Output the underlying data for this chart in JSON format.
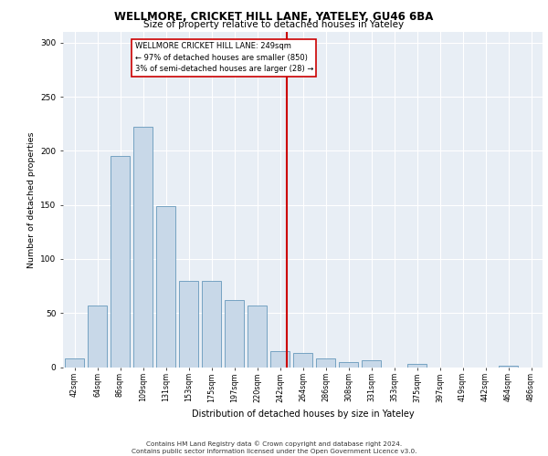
{
  "title1": "WELLMORE, CRICKET HILL LANE, YATELEY, GU46 6BA",
  "title2": "Size of property relative to detached houses in Yateley",
  "xlabel": "Distribution of detached houses by size in Yateley",
  "ylabel": "Number of detached properties",
  "categories": [
    "42sqm",
    "64sqm",
    "86sqm",
    "109sqm",
    "131sqm",
    "153sqm",
    "175sqm",
    "197sqm",
    "220sqm",
    "242sqm",
    "264sqm",
    "286sqm",
    "308sqm",
    "331sqm",
    "353sqm",
    "375sqm",
    "397sqm",
    "419sqm",
    "442sqm",
    "464sqm",
    "486sqm"
  ],
  "values": [
    8,
    57,
    195,
    222,
    149,
    80,
    80,
    62,
    57,
    15,
    13,
    8,
    5,
    6,
    0,
    3,
    0,
    0,
    0,
    1,
    0
  ],
  "bar_color": "#c8d8e8",
  "bar_edge_color": "#6699bb",
  "annotation_line1": "WELLMORE CRICKET HILL LANE: 249sqm",
  "annotation_line2": "← 97% of detached houses are smaller (850)",
  "annotation_line3": "3% of semi-detached houses are larger (28) →",
  "annotation_box_facecolor": "#ffffff",
  "annotation_box_edgecolor": "#cc0000",
  "vline_color": "#cc0000",
  "background_color": "#e8eef5",
  "grid_color": "#ffffff",
  "footer1": "Contains HM Land Registry data © Crown copyright and database right 2024.",
  "footer2": "Contains public sector information licensed under the Open Government Licence v3.0.",
  "ylim": [
    0,
    310
  ],
  "yticks": [
    0,
    50,
    100,
    150,
    200,
    250,
    300
  ]
}
